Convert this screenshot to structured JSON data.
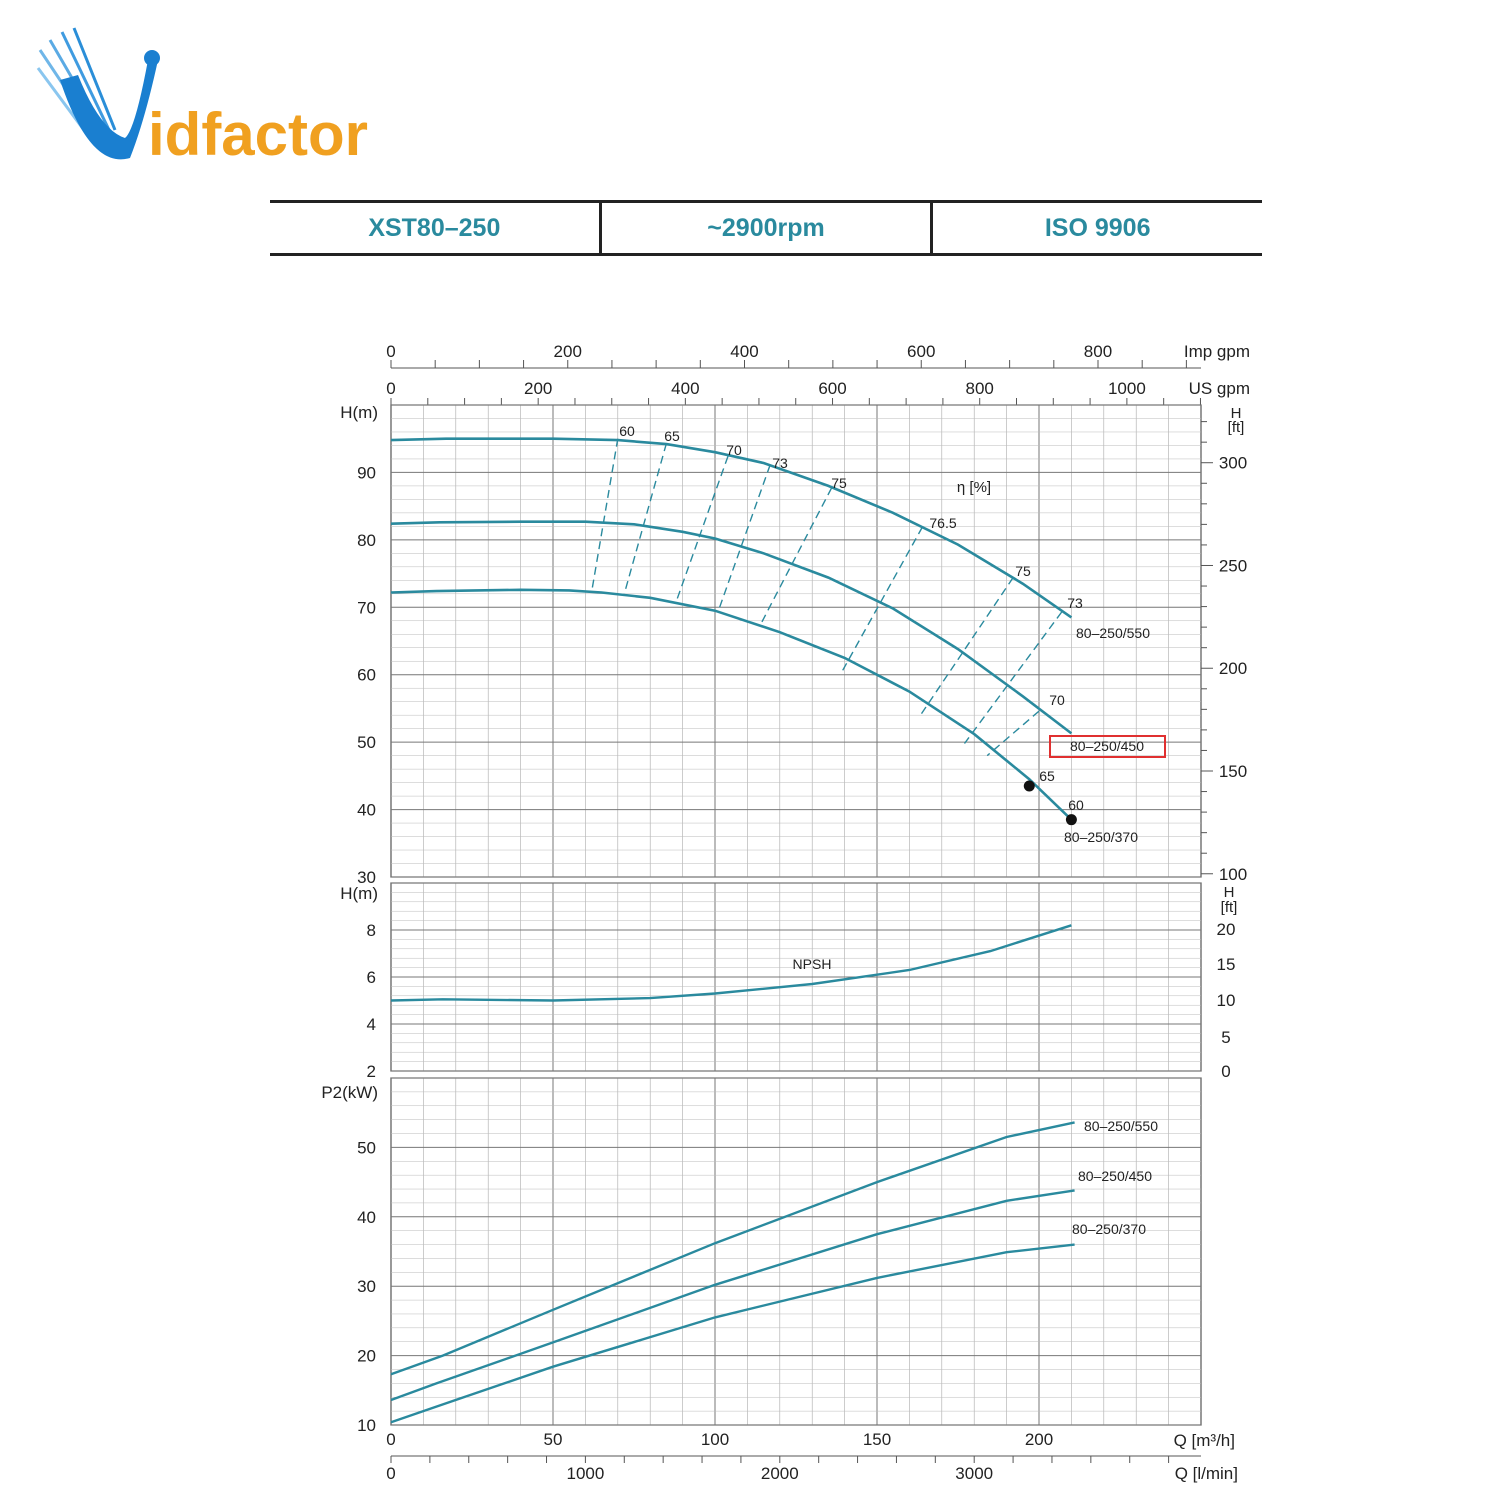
{
  "logo": {
    "text_v": "V",
    "text_rest": "idfactor",
    "color_blue": "#1a7fd0",
    "color_orange": "#f0a020"
  },
  "header": {
    "model": "XST80–250",
    "speed": "~2900rpm",
    "standard": "ISO 9906"
  },
  "chart_data": {
    "type": "line",
    "x_axes": {
      "primary": {
        "label": "Q [m³/h]",
        "range": [
          0,
          250
        ],
        "ticks": [
          0,
          50,
          100,
          150,
          200
        ]
      },
      "secondary_lmin": {
        "label": "Q [l/min]",
        "ticks": [
          0,
          1000,
          2000,
          3000
        ]
      },
      "top_usgpm": {
        "label": "US gpm",
        "ticks": [
          0,
          200,
          400,
          600,
          800,
          1000
        ]
      },
      "top_impgpm": {
        "label": "Imp gpm",
        "ticks": [
          0,
          200,
          400,
          600,
          800
        ]
      }
    },
    "head_panel": {
      "ylabel": "H(m)",
      "ylim": [
        30,
        100
      ],
      "yticks": [
        30,
        40,
        50,
        60,
        70,
        80,
        90
      ],
      "right_label": "H\n[ft]",
      "right_ticks": [
        100,
        150,
        200,
        250,
        300
      ],
      "efficiency_label": "η [%]",
      "series": [
        {
          "name": "80–250/550",
          "points": [
            [
              0,
              94.8
            ],
            [
              17,
              95
            ],
            [
              50,
              95
            ],
            [
              70,
              94.8
            ],
            [
              85,
              94.2
            ],
            [
              100,
              93
            ],
            [
              115,
              91.4
            ],
            [
              135,
              88
            ],
            [
              155,
              84
            ],
            [
              175,
              79.3
            ],
            [
              195,
              73.5
            ],
            [
              210,
              68.5
            ]
          ]
        },
        {
          "name": "80–250/450",
          "points": [
            [
              0,
              82.4
            ],
            [
              15,
              82.6
            ],
            [
              40,
              82.7
            ],
            [
              60,
              82.7
            ],
            [
              75,
              82.3
            ],
            [
              90,
              81.2
            ],
            [
              100,
              80.2
            ],
            [
              115,
              78
            ],
            [
              135,
              74.4
            ],
            [
              155,
              69.8
            ],
            [
              175,
              63.8
            ],
            [
              195,
              56.8
            ],
            [
              210,
              51.3
            ]
          ]
        },
        {
          "name": "80–250/370",
          "points": [
            [
              0,
              72.2
            ],
            [
              14,
              72.4
            ],
            [
              40,
              72.6
            ],
            [
              55,
              72.5
            ],
            [
              65,
              72.2
            ],
            [
              80,
              71.4
            ],
            [
              100,
              69.5
            ],
            [
              120,
              66.3
            ],
            [
              140,
              62.5
            ],
            [
              160,
              57.5
            ],
            [
              180,
              51.2
            ],
            [
              197,
              44.5
            ],
            [
              210,
              38.5
            ]
          ]
        }
      ],
      "efficiency_lines": [
        {
          "label": "60",
          "points": [
            [
              70,
              95
            ],
            [
              62,
              72.5
            ]
          ]
        },
        {
          "label": "65",
          "points": [
            [
              85,
              94.3
            ],
            [
              72,
              72
            ]
          ]
        },
        {
          "label": "70",
          "points": [
            [
              104,
              92.4
            ],
            [
              88,
              70.8
            ]
          ]
        },
        {
          "label": "73",
          "points": [
            [
              117,
              91.1
            ],
            [
              101,
              69.4
            ]
          ]
        },
        {
          "label": "75",
          "points": [
            [
              136,
              87.7
            ],
            [
              114,
              67.4
            ]
          ]
        },
        {
          "label": "76.5",
          "points": [
            [
              164,
              81.9
            ],
            [
              139,
              60.3
            ]
          ]
        },
        {
          "label": "75",
          "points": [
            [
              192,
              74.4
            ],
            [
              163,
              53.7
            ]
          ]
        },
        {
          "label": "73",
          "points": [
            [
              207,
              69.3
            ],
            [
              177,
              49.8
            ]
          ]
        },
        {
          "label": "70",
          "points": [
            [
              200,
              54.6
            ],
            [
              184,
              48
            ]
          ]
        }
      ],
      "efficiency_limit_labels": [
        {
          "label": "65",
          "at": [
            197,
            43.5
          ]
        },
        {
          "label": "60",
          "at": [
            210,
            38.5
          ]
        }
      ],
      "curve_labels": [
        "80–250/550",
        "80–250/450",
        "80–250/370"
      ],
      "highlighted_label": "80–250/450",
      "highlight_color": "#e03030"
    },
    "npsh_panel": {
      "ylabel": "H(m)",
      "ylim": [
        2,
        10
      ],
      "yticks": [
        2,
        4,
        6,
        8
      ],
      "right_label": "H\n[ft]",
      "right_ticks": [
        0,
        5,
        10,
        15,
        20
      ],
      "series": [
        {
          "name": "NPSH",
          "points": [
            [
              0,
              5
            ],
            [
              16,
              5.05
            ],
            [
              50,
              5
            ],
            [
              80,
              5.1
            ],
            [
              100,
              5.3
            ],
            [
              130,
              5.7
            ],
            [
              160,
              6.3
            ],
            [
              185,
              7.1
            ],
            [
              210,
              8.2
            ]
          ]
        }
      ]
    },
    "power_panel": {
      "ylabel": "P2(kW)",
      "ylim": [
        10,
        60
      ],
      "yticks": [
        10,
        20,
        30,
        40,
        50
      ],
      "series": [
        {
          "name": "80–250/550",
          "points": [
            [
              0,
              17.3
            ],
            [
              16,
              20
            ],
            [
              50,
              26.6
            ],
            [
              100,
              36.2
            ],
            [
              150,
              45
            ],
            [
              190,
              51.5
            ],
            [
              211,
              53.6
            ]
          ]
        },
        {
          "name": "80–250/450",
          "points": [
            [
              0,
              13.6
            ],
            [
              14,
              16
            ],
            [
              50,
              21.9
            ],
            [
              100,
              30.2
            ],
            [
              150,
              37.5
            ],
            [
              190,
              42.3
            ],
            [
              211,
              43.8
            ]
          ]
        },
        {
          "name": "80–250/370",
          "points": [
            [
              0,
              10.4
            ],
            [
              13,
              12.5
            ],
            [
              50,
              18.4
            ],
            [
              100,
              25.5
            ],
            [
              150,
              31.2
            ],
            [
              190,
              34.9
            ],
            [
              211,
              36
            ]
          ]
        }
      ]
    },
    "series_color": "#2a8a9e",
    "grid": true
  }
}
